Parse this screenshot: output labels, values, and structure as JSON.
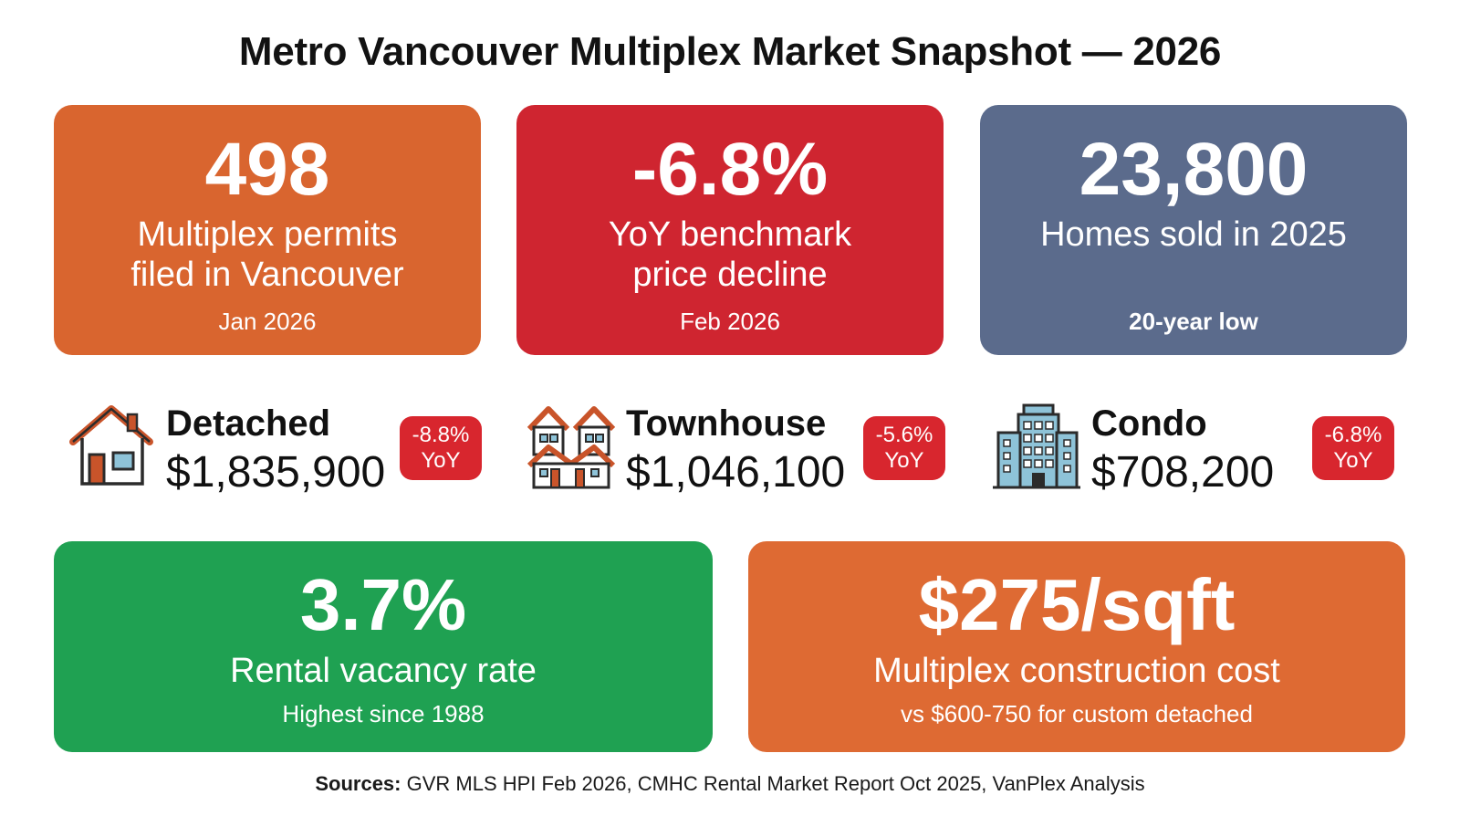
{
  "title": "Metro Vancouver Multiplex Market Snapshot — 2026",
  "cards": {
    "permits": {
      "value": "498",
      "label_line1": "Multiplex permits",
      "label_line2": "filed in Vancouver",
      "sub": "Jan 2026",
      "color": "#d9652f"
    },
    "price": {
      "value": "-6.8%",
      "label_line1": "YoY benchmark",
      "label_line2": "price decline",
      "sub": "Feb 2026",
      "color": "#cf2530"
    },
    "sold": {
      "value": "23,800",
      "label_line1": "Homes sold in 2025",
      "sub": "20-year low",
      "color": "#5b6b8c"
    },
    "vacancy": {
      "value": "3.7%",
      "label": "Rental vacancy rate",
      "sub": "Highest since 1988",
      "color": "#1fa152"
    },
    "cost": {
      "value": "$275/sqft",
      "label": "Multiplex construction cost",
      "sub": "vs $600-750 for custom detached",
      "color": "#de6a33"
    }
  },
  "properties": [
    {
      "name": "Detached",
      "price": "$1,835,900",
      "change": "-8.8%",
      "change_unit": "YoY",
      "icon": "house-icon"
    },
    {
      "name": "Townhouse",
      "price": "$1,046,100",
      "change": "-5.6%",
      "change_unit": "YoY",
      "icon": "townhouse-icon"
    },
    {
      "name": "Condo",
      "price": "$708,200",
      "change": "-6.8%",
      "change_unit": "YoY",
      "icon": "condo-building-icon"
    }
  ],
  "sources": {
    "prefix": "Sources:",
    "text": " GVR MLS HPI Feb 2026, CMHC Rental Market Report Oct 2025, VanPlex Analysis"
  },
  "colors": {
    "badge": "#d8262e",
    "icon_stroke": "#2b2b2b",
    "icon_roof": "#c9542a",
    "icon_window": "#8ec3d8"
  }
}
